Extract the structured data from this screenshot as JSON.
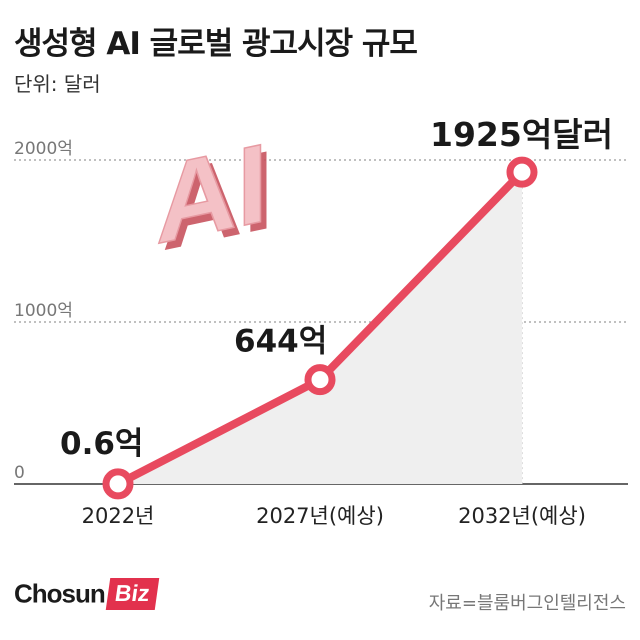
{
  "header": {
    "title": "생성형 AI 글로벌 광고시장 규모",
    "unit": "단위: 달러"
  },
  "chart_data": {
    "type": "line",
    "categories": [
      "2022년",
      "2027년(예상)",
      "2032년(예상)"
    ],
    "values": [
      0.6,
      644,
      1925
    ],
    "data_labels": [
      "0.6억",
      "644억",
      "1925억달러"
    ],
    "y_ticks": [
      {
        "value": 0,
        "label": "0"
      },
      {
        "value": 1000,
        "label": "1000억"
      },
      {
        "value": 2000,
        "label": "2000억"
      }
    ],
    "ylim": [
      0,
      2000
    ],
    "grid": true,
    "line_color": "#e84a5f",
    "area_color": "#efefef"
  },
  "decoration": {
    "label": "AI",
    "color": "#f2b3b9"
  },
  "footer": {
    "logo_main": "Chosun",
    "logo_badge": "Biz",
    "source": "자료=블룸버그인텔리전스"
  }
}
